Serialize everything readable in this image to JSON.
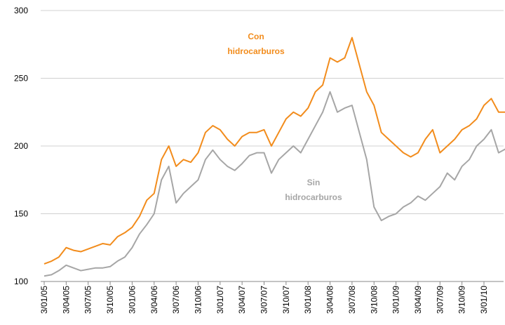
{
  "chart_data": {
    "type": "line",
    "categories": [
      "3/01/05",
      null,
      null,
      "3/04/05",
      null,
      null,
      "3/07/05",
      null,
      null,
      "3/10/05",
      null,
      null,
      "3/01/06",
      null,
      null,
      "3/04/06",
      null,
      null,
      "3/07/06",
      null,
      null,
      "3/10/06",
      null,
      null,
      "3/01/07",
      null,
      null,
      "3/04/07",
      null,
      null,
      "3/07/07",
      null,
      null,
      "3/10/07",
      null,
      null,
      "3/01/08",
      null,
      null,
      "3/04/08",
      null,
      null,
      "3/07/08",
      null,
      null,
      "3/10/08",
      null,
      null,
      "3/01/09",
      null,
      null,
      "3/04/09",
      null,
      null,
      "3/07/09",
      null,
      null,
      "3/10/09",
      null,
      null,
      "3/01/10",
      null,
      null,
      null
    ],
    "series": [
      {
        "name": [
          "Con",
          "hidrocarburos"
        ],
        "color": "#f28c1c",
        "values": [
          113,
          115,
          118,
          125,
          123,
          122,
          124,
          126,
          128,
          127,
          133,
          136,
          140,
          148,
          160,
          165,
          190,
          200,
          185,
          190,
          188,
          195,
          210,
          215,
          212,
          205,
          200,
          207,
          210,
          210,
          212,
          200,
          210,
          220,
          225,
          222,
          228,
          240,
          245,
          265,
          262,
          265,
          280,
          260,
          240,
          230,
          210,
          205,
          200,
          195,
          192,
          195,
          205,
          212,
          195,
          200,
          205,
          212,
          215,
          220,
          230,
          235,
          225,
          225
        ]
      },
      {
        "name": [
          "Sin",
          "hidrocarburos"
        ],
        "color": "#a6a6a6",
        "values": [
          104,
          105,
          108,
          112,
          110,
          108,
          109,
          110,
          110,
          111,
          115,
          118,
          125,
          135,
          142,
          150,
          175,
          185,
          158,
          165,
          170,
          175,
          190,
          197,
          190,
          185,
          182,
          187,
          193,
          195,
          195,
          180,
          190,
          195,
          200,
          195,
          205,
          215,
          225,
          240,
          225,
          228,
          230,
          210,
          190,
          155,
          145,
          148,
          150,
          155,
          158,
          163,
          160,
          165,
          170,
          180,
          175,
          185,
          190,
          200,
          205,
          212,
          195,
          198
        ]
      }
    ],
    "ylim": [
      100,
      300
    ],
    "yticks": [
      100,
      150,
      200,
      250,
      300
    ],
    "grid": true
  }
}
